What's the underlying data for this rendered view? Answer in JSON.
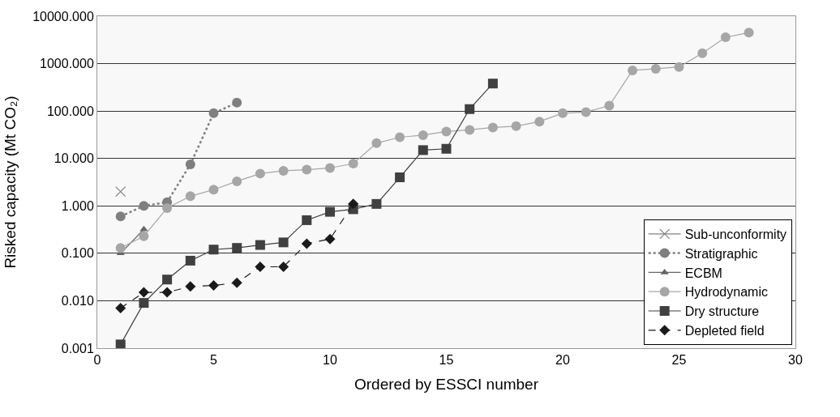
{
  "chart_data": {
    "type": "line",
    "xlabel": "Ordered by ESSCI number",
    "ylabel": "Risked capacity (Mt CO₂)",
    "log": "y",
    "grid": "y",
    "legend": "bottom right",
    "xlim": [
      0,
      30
    ],
    "xticks": [
      0,
      5,
      10,
      15,
      20,
      25,
      30
    ],
    "ylim": [
      0.001,
      10000
    ],
    "yticks": [
      {
        "value": 0.001,
        "label": "0.001"
      },
      {
        "value": 0.01,
        "label": "0.010"
      },
      {
        "value": 0.1,
        "label": "0.100"
      },
      {
        "value": 1,
        "label": "1.000"
      },
      {
        "value": 10,
        "label": "10.000"
      },
      {
        "value": 100,
        "label": "100.000"
      },
      {
        "value": 1000,
        "label": "1000.000"
      },
      {
        "value": 10000,
        "label": "10000.000"
      }
    ],
    "series": [
      {
        "name": "Sub-unconformity",
        "color": "#808080",
        "marker": "cross",
        "line_style": "solid",
        "x": [
          1
        ],
        "values": [
          2.0
        ]
      },
      {
        "name": "Stratigraphic",
        "color": "#7f7f7f",
        "marker": "circle",
        "line_style": "dotted",
        "x": [
          1,
          2,
          3,
          4,
          5,
          6
        ],
        "values": [
          0.6,
          1.0,
          1.2,
          7.5,
          90,
          150
        ]
      },
      {
        "name": "ECBM",
        "color": "#666666",
        "marker": "triangle",
        "line_style": "solid",
        "x": [
          1,
          2
        ],
        "values": [
          0.1,
          0.32
        ]
      },
      {
        "name": "Hydrodynamic",
        "color": "#a6a6a6",
        "marker": "circle",
        "line_style": "solid",
        "x": [
          1,
          2,
          3,
          4,
          5,
          6,
          7,
          8,
          9,
          10,
          11,
          12,
          13,
          14,
          15,
          16,
          17,
          18,
          19,
          20,
          21,
          22,
          23,
          24,
          25,
          26,
          27,
          28
        ],
        "values": [
          0.13,
          0.23,
          0.9,
          1.6,
          2.2,
          3.3,
          4.8,
          5.5,
          5.8,
          6.3,
          7.8,
          21,
          28,
          31,
          37,
          40,
          45,
          48,
          60,
          90,
          95,
          130,
          720,
          780,
          850,
          1650,
          3600,
          4500
        ]
      },
      {
        "name": "Dry structure",
        "color": "#404040",
        "marker": "square",
        "line_style": "solid",
        "x": [
          1,
          2,
          3,
          4,
          5,
          6,
          7,
          8,
          9,
          10,
          11,
          12,
          13,
          14,
          15,
          16,
          17
        ],
        "values": [
          0.0012,
          0.009,
          0.028,
          0.07,
          0.12,
          0.13,
          0.15,
          0.17,
          0.5,
          0.75,
          0.85,
          1.1,
          4,
          15,
          16,
          110,
          380
        ]
      },
      {
        "name": "Depleted field",
        "color": "#1a1a1a",
        "marker": "diamond",
        "line_style": "dashed",
        "x": [
          1,
          2,
          3,
          4,
          5,
          6,
          7,
          8,
          9,
          10,
          11
        ],
        "values": [
          0.007,
          0.015,
          0.015,
          0.02,
          0.021,
          0.024,
          0.052,
          0.052,
          0.16,
          0.2,
          1.1
        ]
      }
    ]
  }
}
